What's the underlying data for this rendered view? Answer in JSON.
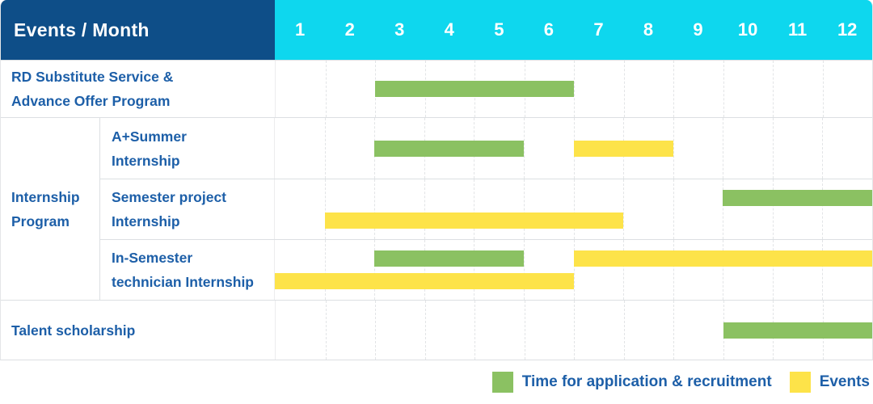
{
  "colors": {
    "navy": "#0e4e88",
    "cyan": "#0ed7ee",
    "text_blue": "#1d5fa8",
    "green": "#8bc162",
    "yellow": "#fde349",
    "grid_dash": "#e2e4e6",
    "row_line": "#dcdfe2"
  },
  "header": {
    "title": "Events / Month",
    "months": [
      "1",
      "2",
      "3",
      "4",
      "5",
      "6",
      "7",
      "8",
      "9",
      "10",
      "11",
      "12"
    ]
  },
  "legend": {
    "items": [
      {
        "key": "application",
        "color": "green",
        "label": "Time for application & recruitment"
      },
      {
        "key": "events",
        "color": "yellow",
        "label": "Events"
      }
    ]
  },
  "chart_data": {
    "type": "bar",
    "subtype": "gantt-timeline",
    "title": "Events / Month",
    "xlabel": "Month",
    "x_ticks": [
      1,
      2,
      3,
      4,
      5,
      6,
      7,
      8,
      9,
      10,
      11,
      12
    ],
    "x_range": [
      1,
      12
    ],
    "grid": "vertical-dashed",
    "legend_position": "bottom-right",
    "series_legend": [
      "Time for application & recruitment",
      "Events"
    ],
    "rows": [
      {
        "group": "",
        "label": "RD Substitute Service & Advance Offer Program",
        "bars": [
          {
            "series": "Time for application & recruitment",
            "color": "green",
            "start_month": 3,
            "end_month": 6
          }
        ]
      },
      {
        "group": "Internship Program",
        "label": "A+Summer Internship",
        "bars": [
          {
            "series": "Time for application & recruitment",
            "color": "green",
            "start_month": 3,
            "end_month": 5
          },
          {
            "series": "Events",
            "color": "yellow",
            "start_month": 7,
            "end_month": 8
          }
        ]
      },
      {
        "group": "Internship Program",
        "label": "Semester project Internship",
        "bars": [
          {
            "series": "Time for application & recruitment",
            "color": "green",
            "start_month": 10,
            "end_month": 12
          },
          {
            "series": "Events",
            "color": "yellow",
            "start_month": 2,
            "end_month": 7
          }
        ]
      },
      {
        "group": "Internship Program",
        "label": "In-Semester technician Internship",
        "bars": [
          {
            "series": "Time for application & recruitment",
            "color": "green",
            "start_month": 3,
            "end_month": 5
          },
          {
            "series": "Events",
            "color": "yellow",
            "start_month": 7,
            "end_month": 12
          },
          {
            "series": "Events",
            "color": "yellow",
            "start_month": 1,
            "end_month": 6
          }
        ]
      },
      {
        "group": "",
        "label": "Talent scholarship",
        "bars": [
          {
            "series": "Time for application & recruitment",
            "color": "green",
            "start_month": 10,
            "end_month": 12
          }
        ]
      }
    ]
  },
  "layout_rows": {
    "blocks": [
      {
        "kind": "plain",
        "name": "rd-substitute",
        "height": 70,
        "label_lines": [
          "RD Substitute Service &",
          "Advance Offer Program"
        ],
        "lines": [
          [
            {
              "color": "green",
              "start": 3,
              "end": 6
            }
          ]
        ]
      },
      {
        "kind": "group",
        "name": "internship-program",
        "group_label_lines": [
          "Internship",
          "Program"
        ],
        "subs": [
          {
            "name": "a-plus-summer",
            "height": 75,
            "label_lines": [
              "A+Summer",
              "Internship"
            ],
            "lines": [
              [
                {
                  "color": "green",
                  "start": 3,
                  "end": 5
                },
                {
                  "color": "yellow",
                  "start": 7,
                  "end": 8
                }
              ]
            ]
          },
          {
            "name": "semester-project",
            "height": 74,
            "label_lines": [
              "Semester project",
              "Internship"
            ],
            "lines": [
              [
                {
                  "color": "green",
                  "start": 10,
                  "end": 12
                }
              ],
              [
                {
                  "color": "yellow",
                  "start": 2,
                  "end": 7
                }
              ]
            ]
          },
          {
            "name": "in-semester-technician",
            "height": 74,
            "label_lines": [
              "In-Semester",
              "technician Internship"
            ],
            "lines": [
              [
                {
                  "color": "green",
                  "start": 3,
                  "end": 5
                },
                {
                  "color": "yellow",
                  "start": 7,
                  "end": 12
                }
              ],
              [
                {
                  "color": "yellow",
                  "start": 1,
                  "end": 6
                }
              ]
            ]
          }
        ]
      },
      {
        "kind": "plain",
        "name": "talent-scholarship",
        "height": 73,
        "label_lines": [
          "Talent scholarship"
        ],
        "lines": [
          [
            {
              "color": "green",
              "start": 10,
              "end": 12
            }
          ]
        ]
      }
    ]
  }
}
